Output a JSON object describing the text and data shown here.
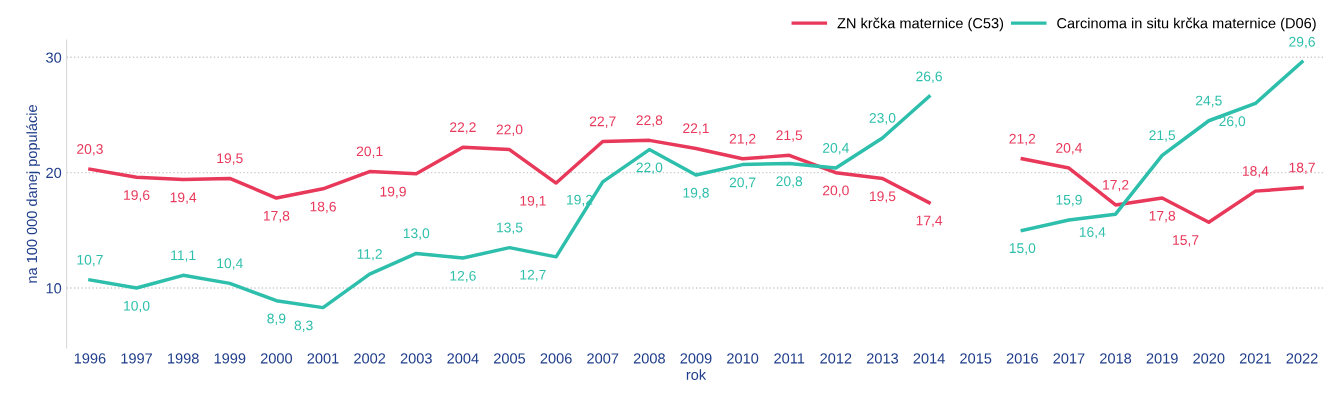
{
  "chart_data": {
    "type": "line",
    "xlabel": "rok",
    "ylabel": "na 100 000 danej populácie",
    "categories": [
      "1996",
      "1997",
      "1998",
      "1999",
      "2000",
      "2001",
      "2002",
      "2003",
      "2004",
      "2005",
      "2006",
      "2007",
      "2008",
      "2009",
      "2010",
      "2011",
      "2012",
      "2013",
      "2014",
      "2015",
      "2016",
      "2017",
      "2018",
      "2019",
      "2020",
      "2021",
      "2022"
    ],
    "series": [
      {
        "name": "ZN krčka maternice (C53)",
        "color": "#e8395b",
        "values": [
          20.3,
          19.6,
          19.4,
          19.5,
          17.8,
          18.6,
          20.1,
          19.9,
          22.2,
          22.0,
          19.1,
          22.7,
          22.8,
          22.1,
          21.2,
          21.5,
          20.0,
          19.5,
          17.4,
          null,
          21.2,
          20.4,
          17.2,
          17.8,
          15.7,
          18.4,
          18.7
        ],
        "value_labels": [
          "20,3",
          "19,6",
          "19,4",
          "19,5",
          "17,8",
          "18,6",
          "20,1",
          "19,9",
          "22,2",
          "22,0",
          "19,1",
          "22,7",
          "22,8",
          "22,1",
          "21,2",
          "21,5",
          "20,0",
          "19,5",
          "17,4",
          null,
          "21,2",
          "20,4",
          "17,2",
          "17,8",
          "15,7",
          "18,4",
          "18,7"
        ]
      },
      {
        "name": "Carcinoma in situ krčka maternice (D06)",
        "color": "#2dbfab",
        "values": [
          10.7,
          10.0,
          11.1,
          10.4,
          8.9,
          8.3,
          11.2,
          13.0,
          12.6,
          13.5,
          12.7,
          19.2,
          22.0,
          19.8,
          20.7,
          20.8,
          20.4,
          23.0,
          26.6,
          null,
          15.0,
          15.9,
          16.4,
          21.5,
          24.5,
          26.0,
          29.6
        ],
        "value_labels": [
          "10,7",
          "10,0",
          "11,1",
          "10,4",
          "8,9",
          "8,3",
          "11,2",
          "13,0",
          "12,6",
          "13,5",
          "12,7",
          "19,2",
          "22,0",
          "19,8",
          "20,7",
          "20,8",
          "20,4",
          "23,0",
          "26,6",
          null,
          "15,0",
          "15,9",
          "16,4",
          "21,5",
          "24,5",
          "26,0",
          "29,6"
        ]
      }
    ],
    "ylim": [
      4.8,
      31.5
    ],
    "yticks": [
      10,
      20,
      30
    ],
    "grid": "y",
    "legend": "top right",
    "marker": "none",
    "line_style": "solid"
  }
}
